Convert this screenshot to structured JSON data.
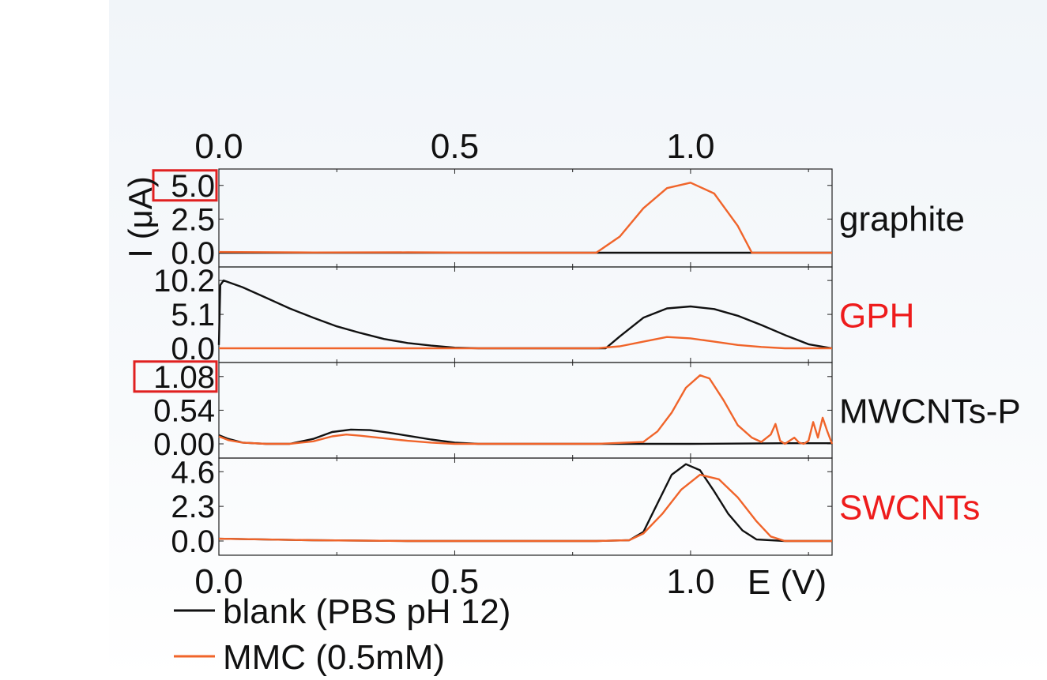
{
  "chart_data": {
    "type": "line",
    "subplots": 4,
    "shared_x": true,
    "xlim": [
      0,
      1.3
    ],
    "x_ticks": [
      0.0,
      0.5,
      1.0
    ],
    "x_tick_labels": [
      "0.0",
      "0.5",
      "1.0"
    ],
    "xlabel": "E (V)",
    "ylabel": "I (μA)",
    "colors": {
      "blank": "#111111",
      "mmc": "#f0642a",
      "highlight": "#e02020",
      "label_red": "#ee1c1c"
    },
    "legend": {
      "position": "bottom-left",
      "entries": [
        {
          "label": "blank (PBS pH 12)",
          "color": "#111111"
        },
        {
          "label": "MMC (0.5mM)",
          "color": "#f0642a"
        }
      ]
    },
    "panels": [
      {
        "name": "graphite",
        "label_color": "#111111",
        "ylim": [
          0,
          6.1
        ],
        "y_ticks": [
          0,
          2.5,
          5.0
        ],
        "y_tick_labels": [
          "0.0",
          "2.5",
          "5.0"
        ],
        "highlight_tick": "5.0",
        "series": [
          {
            "name": "blank (PBS pH 12)",
            "color": "#111111",
            "x": [
              0.0,
              0.2,
              0.4,
              0.6,
              0.8,
              0.9,
              1.0,
              1.1,
              1.3
            ],
            "y": [
              0.0,
              0.0,
              0.0,
              0.0,
              0.0,
              0.0,
              0.0,
              0.0,
              0.0
            ]
          },
          {
            "name": "MMC (0.5mM)",
            "color": "#f0642a",
            "x": [
              0.0,
              0.2,
              0.4,
              0.6,
              0.8,
              0.85,
              0.9,
              0.95,
              1.0,
              1.05,
              1.1,
              1.13,
              1.2,
              1.3
            ],
            "y": [
              0.05,
              0.02,
              0.03,
              0.0,
              0.0,
              1.2,
              3.3,
              4.8,
              5.2,
              4.4,
              2.0,
              0.0,
              0.0,
              0.0
            ]
          }
        ]
      },
      {
        "name": "GPH",
        "label_color": "#ee1c1c",
        "ylim": [
          0,
          12.0
        ],
        "y_ticks": [
          0,
          5.1,
          10.2
        ],
        "y_tick_labels": [
          "0.0",
          "5.1",
          "10.2"
        ],
        "series": [
          {
            "name": "blank (PBS pH 12)",
            "color": "#111111",
            "x": [
              0.0,
              0.003,
              0.01,
              0.05,
              0.1,
              0.15,
              0.2,
              0.25,
              0.3,
              0.35,
              0.4,
              0.45,
              0.5,
              0.55,
              0.6,
              0.7,
              0.8,
              0.82,
              0.85,
              0.9,
              0.95,
              1.0,
              1.05,
              1.1,
              1.15,
              1.2,
              1.25,
              1.3
            ],
            "y": [
              0.5,
              9.5,
              10.2,
              9.2,
              7.6,
              6.0,
              4.6,
              3.3,
              2.3,
              1.4,
              0.8,
              0.4,
              0.1,
              0.0,
              0.0,
              0.0,
              0.0,
              0.0,
              1.8,
              4.6,
              6.0,
              6.3,
              5.9,
              4.9,
              3.5,
              2.0,
              0.6,
              0.0
            ]
          },
          {
            "name": "MMC (0.5mM)",
            "color": "#f0642a",
            "x": [
              0.0,
              0.2,
              0.4,
              0.6,
              0.8,
              0.85,
              0.9,
              0.95,
              1.0,
              1.05,
              1.1,
              1.15,
              1.2,
              1.25,
              1.3
            ],
            "y": [
              0.0,
              0.0,
              0.0,
              0.0,
              0.0,
              0.3,
              1.0,
              1.7,
              1.5,
              1.0,
              0.5,
              0.2,
              0.0,
              0.0,
              0.0
            ]
          }
        ]
      },
      {
        "name": "MWCNTs-P",
        "label_color": "#111111",
        "ylim": [
          0,
          1.28
        ],
        "y_ticks": [
          0,
          0.54,
          1.08
        ],
        "y_tick_labels": [
          "0.00",
          "0.54",
          "1.08"
        ],
        "highlight_tick": "1.08",
        "series": [
          {
            "name": "blank (PBS pH 12)",
            "color": "#111111",
            "x": [
              0.0,
              0.02,
              0.05,
              0.1,
              0.15,
              0.2,
              0.24,
              0.28,
              0.32,
              0.36,
              0.4,
              0.45,
              0.5,
              0.55,
              0.6,
              0.8,
              1.0,
              1.2,
              1.3
            ],
            "y": [
              0.14,
              0.08,
              0.02,
              0.0,
              0.0,
              0.08,
              0.19,
              0.23,
              0.22,
              0.18,
              0.13,
              0.07,
              0.02,
              0.0,
              0.0,
              0.0,
              0.0,
              0.01,
              0.01
            ]
          },
          {
            "name": "MMC (0.5mM)",
            "color": "#f0642a",
            "x": [
              0.0,
              0.02,
              0.05,
              0.1,
              0.15,
              0.2,
              0.24,
              0.27,
              0.3,
              0.35,
              0.4,
              0.45,
              0.5,
              0.55,
              0.6,
              0.8,
              0.9,
              0.93,
              0.96,
              0.99,
              1.02,
              1.04,
              1.07,
              1.1,
              1.13,
              1.15,
              1.17,
              1.18,
              1.19,
              1.2,
              1.22,
              1.23,
              1.24,
              1.25,
              1.26,
              1.27,
              1.28,
              1.29,
              1.3
            ],
            "y": [
              0.12,
              0.06,
              0.02,
              0.0,
              0.0,
              0.04,
              0.12,
              0.15,
              0.13,
              0.09,
              0.05,
              0.02,
              0.0,
              0.0,
              0.0,
              0.0,
              0.03,
              0.2,
              0.5,
              0.9,
              1.1,
              1.05,
              0.7,
              0.3,
              0.1,
              0.03,
              0.15,
              0.32,
              0.05,
              0.0,
              0.1,
              0.02,
              0.0,
              0.05,
              0.35,
              0.1,
              0.42,
              0.2,
              0.0
            ]
          }
        ]
      },
      {
        "name": "SWCNTs",
        "label_color": "#ee1c1c",
        "ylim": [
          0,
          5.4
        ],
        "y_ticks": [
          0,
          2.3,
          4.6
        ],
        "y_tick_labels": [
          "0.0",
          "2.3",
          "4.6"
        ],
        "series": [
          {
            "name": "blank (PBS pH 12)",
            "color": "#111111",
            "x": [
              0.0,
              0.2,
              0.4,
              0.6,
              0.8,
              0.87,
              0.9,
              0.93,
              0.96,
              0.99,
              1.02,
              1.05,
              1.08,
              1.11,
              1.14,
              1.2,
              1.3
            ],
            "y": [
              0.15,
              0.05,
              0.0,
              0.0,
              0.0,
              0.05,
              0.6,
              2.5,
              4.4,
              5.1,
              4.7,
              3.3,
              1.8,
              0.7,
              0.1,
              0.0,
              0.0
            ]
          },
          {
            "name": "MMC (0.5mM)",
            "color": "#f0642a",
            "x": [
              0.0,
              0.2,
              0.4,
              0.6,
              0.8,
              0.87,
              0.9,
              0.94,
              0.98,
              1.02,
              1.06,
              1.1,
              1.14,
              1.17,
              1.2,
              1.3
            ],
            "y": [
              0.15,
              0.05,
              0.0,
              0.0,
              0.0,
              0.05,
              0.5,
              1.8,
              3.4,
              4.4,
              4.1,
              2.9,
              1.3,
              0.3,
              0.0,
              0.0
            ]
          }
        ]
      }
    ]
  }
}
